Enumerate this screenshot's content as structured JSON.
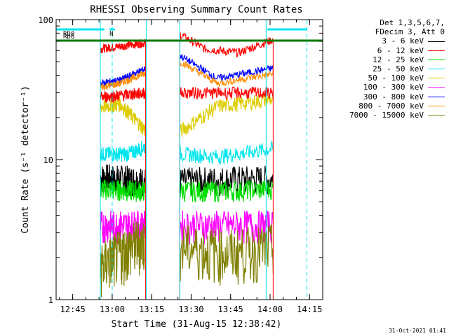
{
  "chart_data": {
    "type": "line",
    "title": "RHESSI Observing Summary Count Rates",
    "xlabel": "Start Time (31-Aug-15 12:38:42)",
    "ylabel": "Count Rate (s⁻¹ detector⁻¹)",
    "yscale": "log",
    "ylim": [
      1,
      100
    ],
    "y_ticks": [
      "1",
      "10",
      "100"
    ],
    "xlim": [
      "12:38:42",
      "14:20:00"
    ],
    "x_ticks": [
      "12:45",
      "13:00",
      "13:15",
      "13:30",
      "13:45",
      "14:00",
      "14:15"
    ],
    "grid": false,
    "legend_position": "right",
    "legend_header": [
      "Det 1,3,5,6,7,",
      "FDecim 3, Att 0"
    ],
    "flags": [
      {
        "label": "RD0",
        "color": "#00e5ee",
        "start": "12:38:42",
        "end": "12:57:00",
        "row": 1
      },
      {
        "label": "N",
        "color": "#00e5ee",
        "start": "12:59:00",
        "end": "13:01:00",
        "row": 1
      },
      {
        "label": "",
        "color": "#00e5ee",
        "start": "13:59:00",
        "end": "14:14:00",
        "row": 1
      },
      {
        "label": "RD6",
        "color": "#007a00",
        "start": "12:38:42",
        "end": "14:20:00",
        "row": 2
      }
    ],
    "data_windows": [
      [
        "12:55:30",
        "13:12:40"
      ],
      [
        "13:25:40",
        "14:01:10"
      ]
    ],
    "cyan_solid_lines": [
      "12:55:30",
      "13:13:00",
      "13:25:40",
      "13:58:30"
    ],
    "cyan_dashed_lines": [
      "13:00:00",
      "14:14:00"
    ],
    "series": [
      {
        "name": "3 - 6 keV",
        "color": "#000000",
        "values": [
          {
            "t": "12:56",
            "y": 7.5
          },
          {
            "t": "13:05",
            "y": 7.3
          },
          {
            "t": "13:13",
            "y": 7.0
          },
          {
            "t": "13:26",
            "y": 7.0
          },
          {
            "t": "13:40",
            "y": 7.2
          },
          {
            "t": "14:00",
            "y": 7.3
          }
        ]
      },
      {
        "name": "6 - 12 keV",
        "color": "#ff0000",
        "values": [
          {
            "t": "12:56",
            "y": 62
          },
          {
            "t": "13:12",
            "y": 68
          },
          {
            "t": "13:26",
            "y": 78
          },
          {
            "t": "13:35",
            "y": 62
          },
          {
            "t": "13:48",
            "y": 58
          },
          {
            "t": "14:01",
            "y": 72
          }
        ]
      },
      {
        "name": "12 - 25 keV",
        "color": "#00dd00",
        "values": [
          {
            "t": "12:56",
            "y": 6.2
          },
          {
            "t": "13:10",
            "y": 6.0
          },
          {
            "t": "13:26",
            "y": 6.0
          },
          {
            "t": "13:45",
            "y": 6.0
          },
          {
            "t": "14:01",
            "y": 6.2
          }
        ]
      },
      {
        "name": "25 - 50 keV",
        "color": "#00e5ee",
        "values": [
          {
            "t": "12:56",
            "y": 11
          },
          {
            "t": "13:06",
            "y": 11
          },
          {
            "t": "13:13",
            "y": 12.5
          },
          {
            "t": "13:26",
            "y": 11
          },
          {
            "t": "13:40",
            "y": 10.5
          },
          {
            "t": "14:01",
            "y": 12
          }
        ]
      },
      {
        "name": "50 - 100 keV",
        "color": "#ddcc00",
        "values": [
          {
            "t": "12:56",
            "y": 24
          },
          {
            "t": "13:03",
            "y": 25
          },
          {
            "t": "13:13",
            "y": 16
          },
          {
            "t": "13:26",
            "y": 16
          },
          {
            "t": "13:40",
            "y": 24
          },
          {
            "t": "14:01",
            "y": 27
          }
        ]
      },
      {
        "name": "100 - 300 keV",
        "color": "#ff00ff",
        "values": [
          {
            "t": "12:56",
            "y": 3.4
          },
          {
            "t": "13:10",
            "y": 3.4
          },
          {
            "t": "13:26",
            "y": 3.4
          },
          {
            "t": "13:45",
            "y": 3.4
          },
          {
            "t": "14:01",
            "y": 3.4
          }
        ]
      },
      {
        "name": "300 - 800 keV",
        "color": "#0000ff",
        "values": [
          {
            "t": "12:56",
            "y": 35
          },
          {
            "t": "13:03",
            "y": 37
          },
          {
            "t": "13:13",
            "y": 45
          },
          {
            "t": "13:20",
            "y": 46
          },
          {
            "t": "13:26",
            "y": 55
          },
          {
            "t": "13:40",
            "y": 38
          },
          {
            "t": "14:01",
            "y": 45
          }
        ]
      },
      {
        "name": "800 - 7000 keV",
        "color": "#ff8c00",
        "values": [
          {
            "t": "12:56",
            "y": 33
          },
          {
            "t": "13:03",
            "y": 35
          },
          {
            "t": "13:13",
            "y": 42
          },
          {
            "t": "13:20",
            "y": 44
          },
          {
            "t": "13:26",
            "y": 50
          },
          {
            "t": "13:40",
            "y": 35
          },
          {
            "t": "14:01",
            "y": 41
          }
        ]
      },
      {
        "name": "7000 - 15000 keV",
        "color": "#808000",
        "values": [
          {
            "t": "12:56",
            "y": 1.8
          },
          {
            "t": "13:10",
            "y": 2.6
          },
          {
            "t": "13:13",
            "y": 2.6
          },
          {
            "t": "13:26",
            "y": 2.4
          },
          {
            "t": "13:45",
            "y": 2.2
          },
          {
            "t": "14:01",
            "y": 2.4
          }
        ]
      }
    ],
    "extra_series_segment": {
      "color": "#ff0000",
      "values": [
        {
          "t": "12:56",
          "y": 28
        },
        {
          "t": "13:13",
          "y": 30
        }
      ]
    }
  },
  "footer_stamp": "31-Oct-2021 01:41"
}
